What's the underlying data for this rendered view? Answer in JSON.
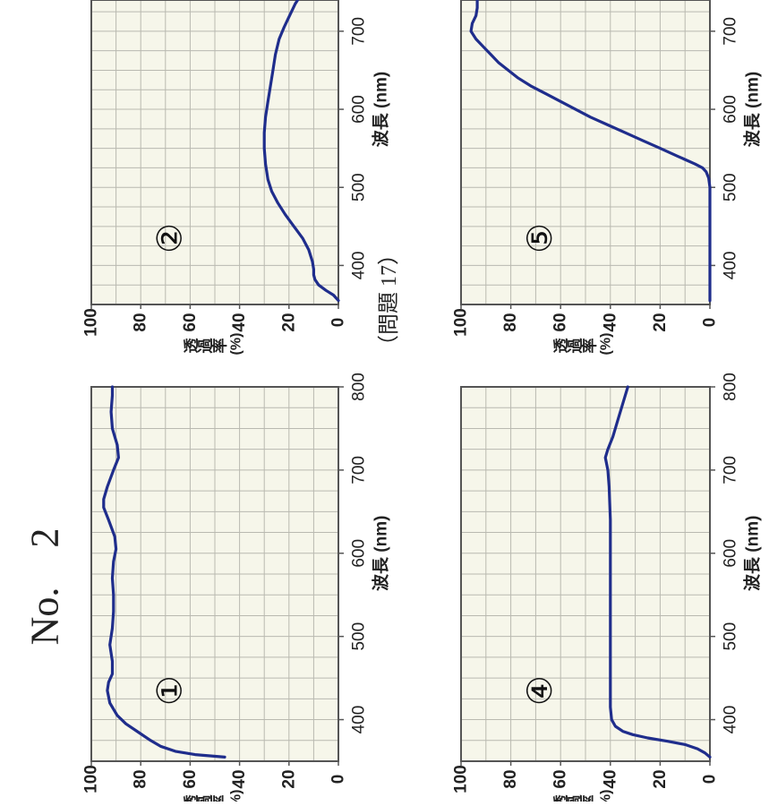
{
  "page": {
    "heading": "No.　2",
    "problem": "（問題 17）"
  },
  "chart_data": [
    {
      "type": "line",
      "panel_label": "①",
      "xlabel": "波長 (nm)",
      "ylabel_chars": [
        "透",
        "過",
        "率"
      ],
      "ylabel_unit": "(%)",
      "xlim": [
        350,
        800
      ],
      "ylim": [
        0,
        100
      ],
      "xticks": [
        400,
        500,
        600,
        700,
        800
      ],
      "yticks": [
        0,
        20,
        40,
        60,
        80,
        100
      ],
      "grid": true,
      "series": [
        {
          "color": "#1f2d8c",
          "x": [
            355,
            358,
            362,
            368,
            375,
            385,
            395,
            405,
            420,
            435,
            445,
            455,
            470,
            490,
            510,
            530,
            550,
            570,
            590,
            605,
            620,
            640,
            655,
            665,
            680,
            700,
            715,
            730,
            750,
            770,
            790,
            800
          ],
          "y": [
            46,
            58,
            66,
            72,
            76,
            81,
            86,
            89.5,
            92.5,
            93.5,
            93,
            91.5,
            91.5,
            92.5,
            91.5,
            91,
            91,
            91.5,
            91,
            90,
            90.5,
            93,
            95,
            95,
            93.5,
            91,
            89,
            89.5,
            91.5,
            92,
            91.5,
            91.5
          ]
        }
      ]
    },
    {
      "type": "line",
      "panel_label": "②",
      "xlabel": "波長 (nm)",
      "ylabel_chars": [
        "透",
        "過",
        "率"
      ],
      "ylabel_unit": "(%)",
      "xlim": [
        350,
        740
      ],
      "ylim": [
        0,
        100
      ],
      "xticks": [
        400,
        500,
        600,
        700
      ],
      "yticks": [
        0,
        20,
        40,
        60,
        80,
        100
      ],
      "grid": true,
      "series": [
        {
          "color": "#1f2d8c",
          "x": [
            355,
            362,
            368,
            375,
            382,
            388,
            395,
            405,
            420,
            435,
            450,
            465,
            480,
            495,
            510,
            530,
            550,
            570,
            590,
            610,
            630,
            650,
            670,
            690,
            705,
            715,
            725,
            735,
            740
          ],
          "y": [
            0,
            2,
            5,
            8,
            9.5,
            10,
            10,
            10.5,
            12,
            14.5,
            18,
            21.5,
            24.5,
            27,
            28.5,
            29.5,
            30,
            30,
            29.5,
            28.5,
            27.5,
            26.5,
            25.5,
            24,
            22,
            20.5,
            19,
            17.5,
            16.5
          ]
        }
      ]
    },
    {
      "type": "line",
      "panel_label": "④",
      "xlabel": "波長 (nm)",
      "ylabel_chars": [
        "透",
        "過",
        "率"
      ],
      "ylabel_unit": "(%)",
      "xlim": [
        350,
        800
      ],
      "ylim": [
        0,
        100
      ],
      "xticks": [
        400,
        500,
        600,
        700,
        800
      ],
      "yticks": [
        0,
        20,
        40,
        60,
        80,
        100
      ],
      "grid": true,
      "series": [
        {
          "color": "#1f2d8c",
          "x": [
            355,
            360,
            365,
            370,
            374,
            378,
            382,
            386,
            392,
            400,
            415,
            440,
            480,
            520,
            560,
            600,
            640,
            680,
            700,
            715,
            725,
            740,
            760,
            780,
            800
          ],
          "y": [
            0,
            2,
            5,
            10,
            17,
            25,
            31,
            35,
            38,
            39.5,
            40,
            40,
            40,
            40,
            40,
            40,
            40,
            40.5,
            41,
            42,
            41,
            39,
            37,
            35,
            33
          ]
        }
      ]
    },
    {
      "type": "line",
      "panel_label": "⑤",
      "xlabel": "波長 (nm)",
      "ylabel_chars": [
        "透",
        "過",
        "率"
      ],
      "ylabel_unit": "(%)",
      "xlim": [
        350,
        740
      ],
      "ylim": [
        0,
        100
      ],
      "xticks": [
        400,
        500,
        600,
        700
      ],
      "yticks": [
        0,
        20,
        40,
        60,
        80,
        100
      ],
      "grid": true,
      "series": [
        {
          "color": "#1f2d8c",
          "x": [
            355,
            380,
            400,
            420,
            440,
            460,
            480,
            500,
            512,
            520,
            525,
            530,
            540,
            550,
            560,
            570,
            580,
            590,
            600,
            610,
            620,
            630,
            640,
            650,
            660,
            670,
            680,
            690,
            700,
            710,
            720,
            730,
            740
          ],
          "y": [
            0,
            0,
            0,
            0,
            0,
            0,
            0,
            0,
            0.5,
            1.5,
            3,
            6,
            13,
            20,
            27,
            34,
            41,
            48,
            54,
            60,
            66,
            72,
            77,
            81,
            85,
            88,
            91,
            94,
            96,
            95.5,
            94,
            93.5,
            93.5
          ]
        }
      ]
    }
  ]
}
